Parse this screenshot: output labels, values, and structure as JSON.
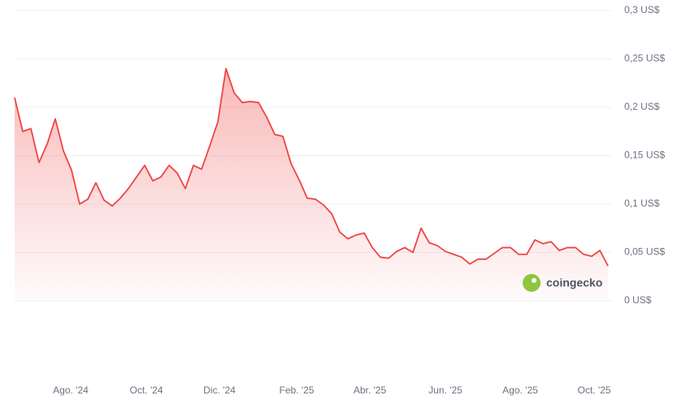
{
  "chart_data": {
    "type": "area",
    "watermark": "coingecko",
    "series": [
      {
        "color": "#ef4444",
        "values": [
          0.21,
          0.175,
          0.178,
          0.143,
          0.162,
          0.188,
          0.155,
          0.135,
          0.1,
          0.105,
          0.122,
          0.104,
          0.098,
          0.106,
          0.116,
          0.128,
          0.14,
          0.124,
          0.128,
          0.14,
          0.132,
          0.116,
          0.14,
          0.136,
          0.16,
          0.185,
          0.24,
          0.215,
          0.205,
          0.206,
          0.205,
          0.19,
          0.172,
          0.17,
          0.142,
          0.125,
          0.106,
          0.105,
          0.099,
          0.09,
          0.071,
          0.064,
          0.068,
          0.07,
          0.055,
          0.045,
          0.044,
          0.051,
          0.055,
          0.05,
          0.075,
          0.06,
          0.057,
          0.051,
          0.048,
          0.045,
          0.038,
          0.043,
          0.043,
          0.049,
          0.055,
          0.055,
          0.048,
          0.048,
          0.063,
          0.059,
          0.061,
          0.052,
          0.055,
          0.055,
          0.048,
          0.046,
          0.052,
          0.036
        ]
      }
    ],
    "xlim": [
      0,
      73
    ],
    "xticks": [
      {
        "value": 6.9,
        "label": "Ago. '24"
      },
      {
        "value": 16.2,
        "label": "Oct. '24"
      },
      {
        "value": 25.2,
        "label": "Dic. '24"
      },
      {
        "value": 34.7,
        "label": "Feb. '25"
      },
      {
        "value": 43.7,
        "label": "Abr. '25"
      },
      {
        "value": 53,
        "label": "Jun. '25"
      },
      {
        "value": 62.2,
        "label": "Ago. '25"
      },
      {
        "value": 71.3,
        "label": "Oct. '25"
      }
    ],
    "ylim": [
      0,
      0.3
    ],
    "yticks": [
      {
        "value": 0,
        "label": "0 US$"
      },
      {
        "value": 0.05,
        "label": "0,05 US$"
      },
      {
        "value": 0.1,
        "label": "0,1 US$"
      },
      {
        "value": 0.15,
        "label": "0,15 US$"
      },
      {
        "value": 0.2,
        "label": "0,2 US$"
      },
      {
        "value": 0.25,
        "label": "0,25 US$"
      },
      {
        "value": 0.3,
        "label": "0,3 US$"
      }
    ],
    "grid": true
  }
}
